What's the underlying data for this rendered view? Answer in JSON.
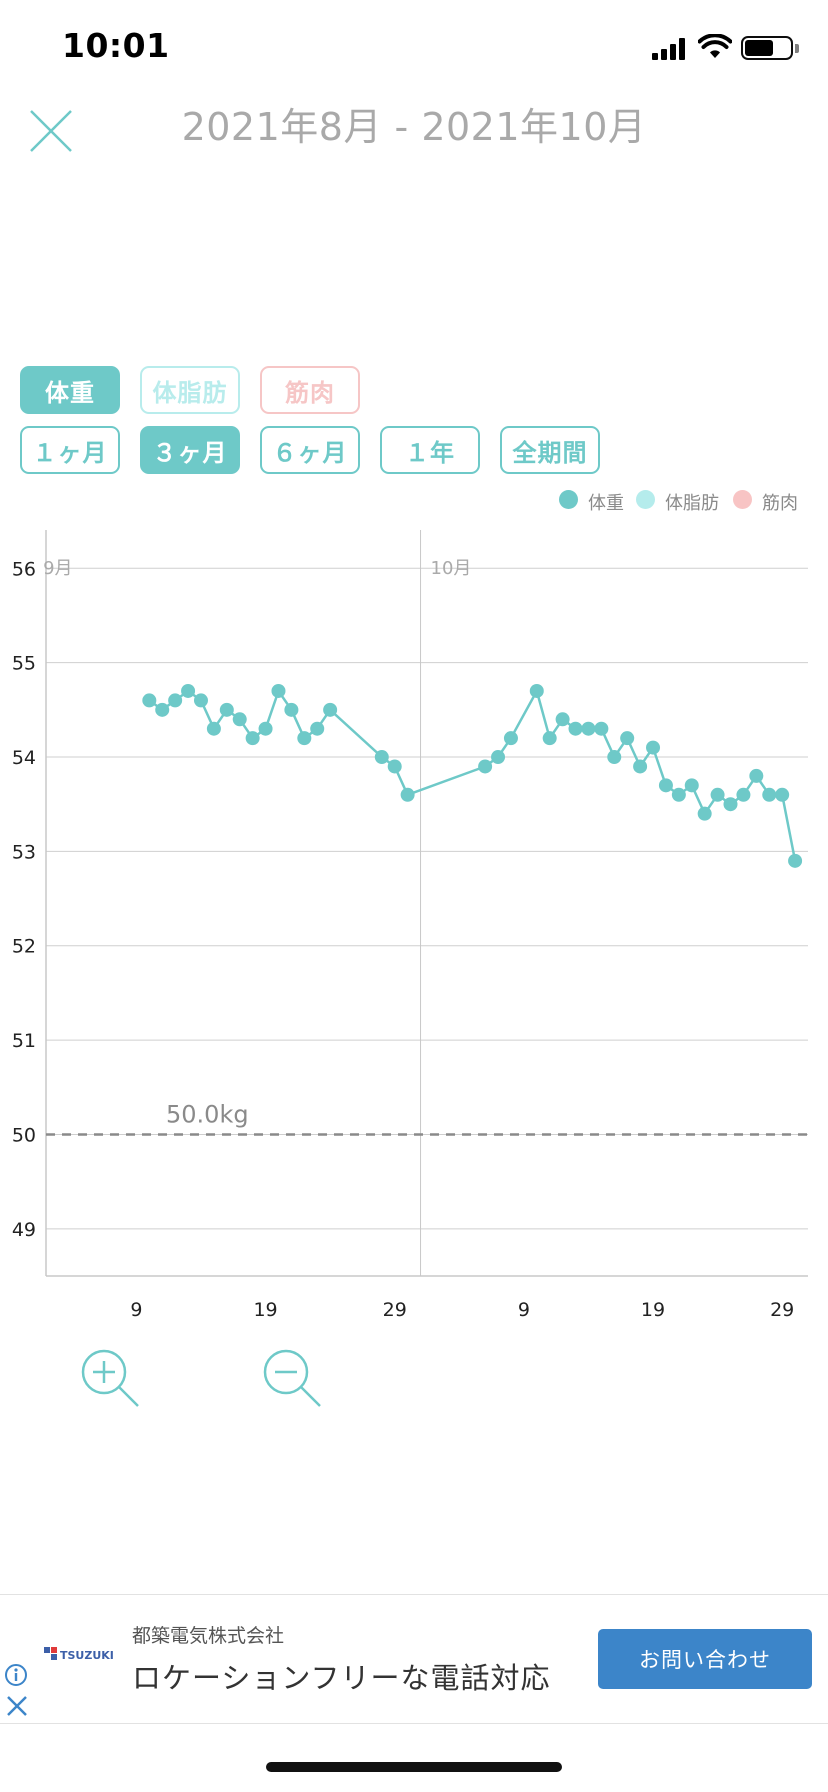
{
  "status_bar": {
    "time": "10:01"
  },
  "header": {
    "date_range": "2021年8月 - 2021年10月"
  },
  "metric_tabs": [
    {
      "label": "体重",
      "active": true
    },
    {
      "label": "体脂肪",
      "active": false
    },
    {
      "label": "筋肉",
      "active": false
    }
  ],
  "period_tabs": [
    {
      "label": "１ヶ月",
      "active": false
    },
    {
      "label": "３ヶ月",
      "active": true
    },
    {
      "label": "６ヶ月",
      "active": false
    },
    {
      "label": "１年",
      "active": false
    },
    {
      "label": "全期間",
      "active": false
    }
  ],
  "legend": [
    {
      "label": "体重",
      "color": "#6ec9c8"
    },
    {
      "label": "体脂肪",
      "color": "#b5ecec"
    },
    {
      "label": "筋肉",
      "color": "#f8c4c4"
    }
  ],
  "chart_data": {
    "type": "line",
    "series": [
      {
        "name": "体重",
        "color": "#6ec9c8",
        "points": [
          [
            "2021-09-10",
            54.6
          ],
          [
            "2021-09-11",
            54.5
          ],
          [
            "2021-09-12",
            54.6
          ],
          [
            "2021-09-13",
            54.7
          ],
          [
            "2021-09-14",
            54.6
          ],
          [
            "2021-09-15",
            54.3
          ],
          [
            "2021-09-16",
            54.5
          ],
          [
            "2021-09-17",
            54.4
          ],
          [
            "2021-09-18",
            54.2
          ],
          [
            "2021-09-19",
            54.3
          ],
          [
            "2021-09-20",
            54.7
          ],
          [
            "2021-09-21",
            54.5
          ],
          [
            "2021-09-22",
            54.2
          ],
          [
            "2021-09-23",
            54.3
          ],
          [
            "2021-09-24",
            54.5
          ],
          [
            "2021-09-28",
            54.0
          ],
          [
            "2021-09-29",
            53.9
          ],
          [
            "2021-09-30",
            53.6
          ],
          [
            "2021-10-06",
            53.9
          ],
          [
            "2021-10-07",
            54.0
          ],
          [
            "2021-10-08",
            54.2
          ],
          [
            "2021-10-10",
            54.7
          ],
          [
            "2021-10-11",
            54.2
          ],
          [
            "2021-10-12",
            54.4
          ],
          [
            "2021-10-13",
            54.3
          ],
          [
            "2021-10-14",
            54.3
          ],
          [
            "2021-10-15",
            54.3
          ],
          [
            "2021-10-16",
            54.0
          ],
          [
            "2021-10-17",
            54.2
          ],
          [
            "2021-10-18",
            53.9
          ],
          [
            "2021-10-19",
            54.1
          ],
          [
            "2021-10-20",
            53.7
          ],
          [
            "2021-10-21",
            53.6
          ],
          [
            "2021-10-22",
            53.7
          ],
          [
            "2021-10-23",
            53.4
          ],
          [
            "2021-10-24",
            53.6
          ],
          [
            "2021-10-25",
            53.5
          ],
          [
            "2021-10-26",
            53.6
          ],
          [
            "2021-10-27",
            53.8
          ],
          [
            "2021-10-28",
            53.6
          ],
          [
            "2021-10-29",
            53.6
          ],
          [
            "2021-10-30",
            52.9
          ]
        ]
      }
    ],
    "ylim": [
      48.5,
      56.3
    ],
    "yticks": [
      "49",
      "50",
      "51",
      "52",
      "53",
      "54",
      "55",
      "56"
    ],
    "xlim": [
      "2021-09-02",
      "2021-10-31"
    ],
    "xticks": [
      {
        "date": "2021-09-09",
        "label": "9"
      },
      {
        "date": "2021-09-19",
        "label": "19"
      },
      {
        "date": "2021-09-29",
        "label": "29"
      },
      {
        "date": "2021-10-09",
        "label": "9"
      },
      {
        "date": "2021-10-19",
        "label": "19"
      },
      {
        "date": "2021-10-29",
        "label": "29"
      }
    ],
    "month_labels": [
      {
        "date": "2021-09-01",
        "label": "9月"
      },
      {
        "date": "2021-10-01",
        "label": "10月"
      }
    ],
    "target": {
      "value": 50.0,
      "label": "50.0kg"
    },
    "grid": true
  },
  "zoom": {
    "in_icon": "zoom-in-icon",
    "out_icon": "zoom-out-icon"
  },
  "ad": {
    "company": "都築電気株式会社",
    "headline": "ロケーションフリーな電話対応",
    "button": "お問い合わせ",
    "logo_text": "TSUZUKI"
  }
}
